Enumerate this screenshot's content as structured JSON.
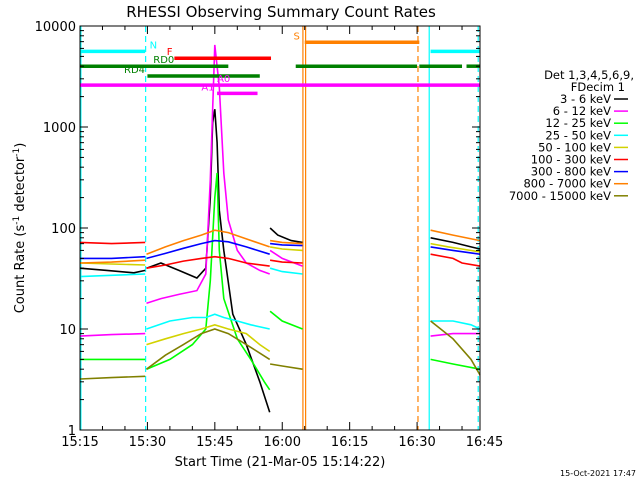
{
  "chart_data": {
    "type": "line",
    "title": "RHESSI Observing Summary Count Rates",
    "xlabel": "Start Time (21-Mar-05 15:14:22)",
    "ylabel_main": "Count Rate (s",
    "ylabel_sup1": "-1",
    "ylabel_mid": " detector",
    "ylabel_sup2": "-1",
    "ylabel_end": ")",
    "yscale": "log",
    "ylim": [
      1,
      10000
    ],
    "xlim_minutes": [
      915,
      1004
    ],
    "x_ticks": [
      {
        "t": 915,
        "label": "15:15"
      },
      {
        "t": 930,
        "label": "15:30"
      },
      {
        "t": 945,
        "label": "15:45"
      },
      {
        "t": 960,
        "label": "16:00"
      },
      {
        "t": 975,
        "label": "16:15"
      },
      {
        "t": 990,
        "label": "16:30"
      },
      {
        "t": 1005,
        "label": "16:45"
      }
    ],
    "y_ticks": [
      {
        "v": 1,
        "label": "1"
      },
      {
        "v": 10,
        "label": "10"
      },
      {
        "v": 100,
        "label": "100"
      },
      {
        "v": 1000,
        "label": "1000"
      },
      {
        "v": 10000,
        "label": "10000"
      }
    ],
    "date_stamp": "15-Oct-2021 17:47",
    "legend": {
      "title1": "Det 1,3,4,5,6,9,",
      "title2": "FDecim 1",
      "entries": [
        {
          "label": "3 - 6 keV",
          "color": "#000000"
        },
        {
          "label": "6 - 12 keV",
          "color": "#ff00ff"
        },
        {
          "label": "12 - 25 keV",
          "color": "#00ff00"
        },
        {
          "label": "25 - 50 keV",
          "color": "#00ffff"
        },
        {
          "label": "50 - 100 keV",
          "color": "#d2d200"
        },
        {
          "label": "100 - 300 keV",
          "color": "#ff0000"
        },
        {
          "label": "300 - 800 keV",
          "color": "#0000ff"
        },
        {
          "label": "800 - 7000 keV",
          "color": "#ff8000"
        },
        {
          "label": "7000 - 15000 keV",
          "color": "#808000"
        }
      ]
    },
    "series": [
      {
        "name": "3 - 6 keV",
        "color": "#000000",
        "segments": [
          {
            "x": [
              915,
              921,
              927,
              929.5
            ],
            "y": [
              40,
              38,
              36,
              38
            ]
          },
          {
            "x": [
              929.8,
              933,
              937,
              941,
              943,
              944,
              944.5,
              945,
              945.5,
              946,
              947,
              949,
              952,
              955,
              957.2
            ],
            "y": [
              40,
              45,
              38,
              32,
              40,
              200,
              1100,
              1500,
              700,
              150,
              60,
              14,
              7,
              3,
              1.5
            ]
          },
          {
            "x": [
              957.3,
              959,
              962,
              964.5
            ],
            "y": [
              100,
              85,
              75,
              72
            ]
          },
          {
            "x": [
              993,
              998,
              1002,
              1004
            ],
            "y": [
              80,
              72,
              65,
              62
            ]
          }
        ]
      },
      {
        "name": "6 - 12 keV",
        "color": "#ff00ff",
        "segments": [
          {
            "x": [
              915,
              922,
              929.5
            ],
            "y": [
              8.5,
              8.8,
              9
            ]
          },
          {
            "x": [
              929.8,
              933,
              937,
              941,
              943,
              944,
              945,
              946,
              947,
              948,
              950,
              952,
              955,
              957.2
            ],
            "y": [
              18,
              20,
              22,
              24,
              35,
              300,
              6500,
              2500,
              350,
              120,
              60,
              45,
              38,
              35
            ]
          },
          {
            "x": [
              957.3,
              960,
              964.5
            ],
            "y": [
              60,
              50,
              42
            ]
          },
          {
            "x": [
              993,
              998,
              1004
            ],
            "y": [
              8.5,
              9,
              9
            ]
          }
        ]
      },
      {
        "name": "12 - 25 keV",
        "color": "#00ff00",
        "segments": [
          {
            "x": [
              915,
              922,
              929.5
            ],
            "y": [
              5,
              5,
              5
            ]
          },
          {
            "x": [
              929.8,
              935,
              940,
              943,
              944,
              945,
              945.5,
              946,
              947,
              950,
              953,
              956,
              957.2
            ],
            "y": [
              4,
              5,
              7,
              10,
              30,
              200,
              350,
              60,
              20,
              8,
              5,
              3,
              2.5
            ]
          },
          {
            "x": [
              957.3,
              960,
              964.5
            ],
            "y": [
              15,
              12,
              10
            ]
          },
          {
            "x": [
              993,
              998,
              1004
            ],
            "y": [
              5,
              4.5,
              4
            ]
          }
        ]
      },
      {
        "name": "25 - 50 keV",
        "color": "#00ffff",
        "segments": [
          {
            "x": [
              915,
              922,
              929.5
            ],
            "y": [
              33,
              34,
              35
            ]
          },
          {
            "x": [
              929.8,
              935,
              940,
              943,
              945,
              947,
              950,
              953,
              957.2
            ],
            "y": [
              10,
              12,
              13,
              13,
              14,
              13,
              12,
              11,
              10
            ]
          },
          {
            "x": [
              957.3,
              960,
              964.5
            ],
            "y": [
              40,
              37,
              35
            ]
          },
          {
            "x": [
              993,
              998,
              1002,
              1004
            ],
            "y": [
              12,
              12,
              11,
              10
            ]
          }
        ]
      },
      {
        "name": "50 - 100 keV",
        "color": "#d2d200",
        "segments": [
          {
            "x": [
              915,
              922,
              929.5
            ],
            "y": [
              45,
              44,
              43
            ]
          },
          {
            "x": [
              929.8,
              934,
              938,
              942,
              945,
              948,
              952,
              955,
              957.2
            ],
            "y": [
              7,
              8,
              9,
              10,
              11,
              10,
              9,
              7,
              6
            ]
          },
          {
            "x": [
              957.3,
              960,
              964.5
            ],
            "y": [
              65,
              62,
              60
            ]
          },
          {
            "x": [
              993,
              997,
              1000,
              1004
            ],
            "y": [
              70,
              65,
              62,
              58
            ]
          }
        ]
      },
      {
        "name": "100 - 300 keV",
        "color": "#ff0000",
        "segments": [
          {
            "x": [
              915,
              922,
              929.5
            ],
            "y": [
              72,
              70,
              72
            ]
          },
          {
            "x": [
              929.8,
              934,
              938,
              942,
              945,
              948,
              952,
              957.2
            ],
            "y": [
              40,
              43,
              47,
              50,
              52,
              50,
              45,
              42
            ]
          },
          {
            "x": [
              957.3,
              960,
              964.5
            ],
            "y": [
              48,
              46,
              45
            ]
          },
          {
            "x": [
              993,
              998,
              1000,
              1004
            ],
            "y": [
              55,
              50,
              45,
              42
            ]
          }
        ]
      },
      {
        "name": "300 - 800 keV",
        "color": "#0000ff",
        "segments": [
          {
            "x": [
              915,
              922,
              929.5
            ],
            "y": [
              50,
              50,
              52
            ]
          },
          {
            "x": [
              929.8,
              934,
              938,
              942,
              945,
              948,
              952,
              957.2
            ],
            "y": [
              50,
              56,
              63,
              70,
              75,
              73,
              65,
              55
            ]
          },
          {
            "x": [
              957.3,
              960,
              964.5
            ],
            "y": [
              70,
              68,
              67
            ]
          },
          {
            "x": [
              993,
              998,
              1004
            ],
            "y": [
              65,
              60,
              55
            ]
          }
        ]
      },
      {
        "name": "800 - 7000 keV",
        "color": "#ff8000",
        "segments": [
          {
            "x": [
              915,
              922,
              929.5
            ],
            "y": [
              45,
              46,
              48
            ]
          },
          {
            "x": [
              929.8,
              934,
              938,
              942,
              945,
              948,
              952,
              957.2
            ],
            "y": [
              55,
              65,
              75,
              85,
              95,
              90,
              78,
              65
            ]
          },
          {
            "x": [
              957.3,
              960,
              964.5
            ],
            "y": [
              75,
              72,
              70
            ]
          },
          {
            "x": [
              993,
              998,
              1004
            ],
            "y": [
              95,
              85,
              75
            ]
          }
        ]
      },
      {
        "name": "7000 - 15000 keV",
        "color": "#808000",
        "segments": [
          {
            "x": [
              915,
              922,
              929.5
            ],
            "y": [
              3.2,
              3.3,
              3.4
            ]
          },
          {
            "x": [
              929.8,
              934,
              938,
              942,
              945,
              948,
              952,
              957.2
            ],
            "y": [
              4,
              5.5,
              7,
              9,
              10,
              9,
              7,
              5
            ]
          },
          {
            "x": [
              957.3,
              960,
              964.5
            ],
            "y": [
              4.5,
              4.3,
              4
            ]
          },
          {
            "x": [
              993,
              998,
              1002,
              1004
            ],
            "y": [
              12,
              8,
              5,
              3.5
            ]
          }
        ]
      }
    ],
    "flags": [
      {
        "label": "N",
        "color": "#00ffff",
        "y": 5600,
        "segments": [
          [
            915,
            929.5
          ],
          [
            993,
            1004
          ]
        ],
        "label_t": 930.5
      },
      {
        "label": "F",
        "color": "#ff0000",
        "y": 4800,
        "segments": [
          [
            936,
            957.5
          ]
        ],
        "label_t": 934.3
      },
      {
        "label": "RD0",
        "color": "#008000",
        "y": 4000,
        "segments": [
          [
            915,
            933
          ],
          [
            930,
            948
          ],
          [
            963,
            990
          ],
          [
            990.5,
            1000
          ],
          [
            1001,
            1004
          ]
        ],
        "label_t": 931.3
      },
      {
        "label": "RD4",
        "color": "#008000",
        "y": 3200,
        "segments": [
          [
            930,
            955
          ]
        ],
        "label_t": 924.8
      },
      {
        "label": "A0",
        "color": "#ff00ff",
        "y": 2600,
        "segments": [
          [
            915,
            1004
          ]
        ],
        "label_t": 945.5
      },
      {
        "label": "A1",
        "color": "#ff00ff",
        "y": 2150,
        "segments": [
          [
            945.5,
            954.5
          ]
        ],
        "label_t": 942
      },
      {
        "label": "S",
        "color": "#ff8000",
        "y": 6900,
        "segments": [
          [
            965,
            990.5
          ]
        ],
        "label_t": 962.5
      }
    ],
    "vlines": [
      {
        "t": 915.2,
        "color": "#00ffff",
        "dash": false
      },
      {
        "t": 929.6,
        "color": "#00ffff",
        "dash": true
      },
      {
        "t": 964.6,
        "color": "#ff8000",
        "dash": false
      },
      {
        "t": 965.2,
        "color": "#ff8000",
        "dash": false
      },
      {
        "t": 990.2,
        "color": "#ff8000",
        "dash": true
      },
      {
        "t": 992.7,
        "color": "#00ffff",
        "dash": false
      },
      {
        "t": 1003.6,
        "color": "#00ffff",
        "dash": true
      }
    ]
  }
}
